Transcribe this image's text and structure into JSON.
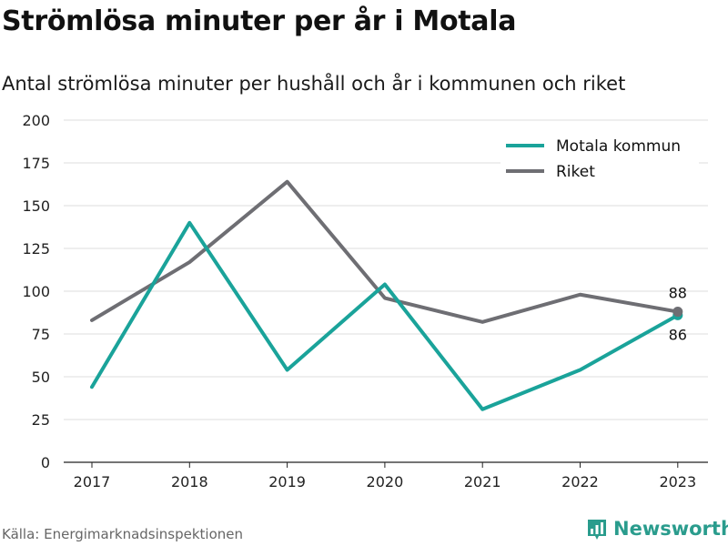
{
  "header": {
    "title": "Strömlösa minuter per år i Motala",
    "subtitle": "Antal strömlösa minuter per hushåll och år i kommunen och riket"
  },
  "footer": {
    "source": "Källa: Energimarknadsinspektionen",
    "brand": "Newsworthy",
    "brand_icon": "bar-chart-logo-icon"
  },
  "chart_data": {
    "type": "line",
    "categories": [
      "2017",
      "2018",
      "2019",
      "2020",
      "2021",
      "2022",
      "2023"
    ],
    "ylim": [
      0,
      200
    ],
    "yticks": [
      0,
      25,
      50,
      75,
      100,
      125,
      150,
      175,
      200
    ],
    "grid": true,
    "legend_position": "top-right",
    "series": [
      {
        "name": "Motala kommun",
        "color": "#1aa39a",
        "values": [
          44,
          140,
          54,
          104,
          31,
          54,
          86
        ],
        "end_label": "86"
      },
      {
        "name": "Riket",
        "color": "#6e6e73",
        "values": [
          83,
          117,
          164,
          96,
          82,
          98,
          88
        ],
        "end_label": "88"
      }
    ]
  }
}
